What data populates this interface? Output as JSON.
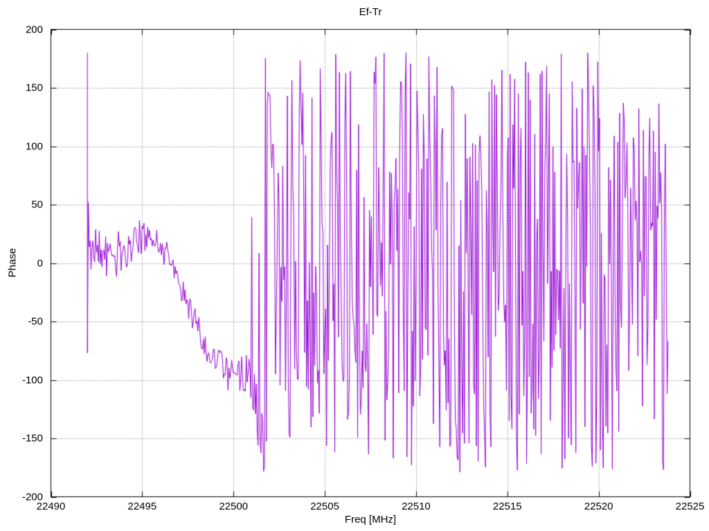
{
  "chart_data": {
    "type": "line",
    "title": "Ef-Tr",
    "xlabel": "Freq [MHz]",
    "ylabel": "Phase",
    "xlim": [
      22490,
      22525
    ],
    "ylim": [
      -200,
      200
    ],
    "x_ticks": [
      "22490",
      "22495",
      "22500",
      "22505",
      "22510",
      "22515",
      "22520",
      "22525"
    ],
    "x_tick_values": [
      22490,
      22495,
      22500,
      22505,
      22510,
      22515,
      22520,
      22525
    ],
    "y_ticks": [
      "-200",
      "-150",
      "-100",
      "-50",
      "0",
      "50",
      "100",
      "150",
      "200"
    ],
    "y_tick_values": [
      -200,
      -150,
      -100,
      -50,
      0,
      50,
      100,
      150,
      200
    ],
    "grid": true,
    "legend": "none",
    "colors": {
      "line": "#9400d3",
      "grid": "#9e9e9e",
      "axis": "#000000",
      "background": "#ffffff"
    },
    "series": [
      {
        "name": "Ef-Tr",
        "color": "#9400d3",
        "x_start": 22492.15,
        "x_end": 22523.8,
        "x_step": 0.05,
        "seed": 20507,
        "prefix_points": [
          [
            22492.0,
            180
          ],
          [
            22492.0,
            -77
          ],
          [
            22492.05,
            52
          ],
          [
            22492.1,
            14
          ]
        ],
        "mean_points": [
          [
            22492.1,
            8
          ],
          [
            22493.0,
            10
          ],
          [
            22493.8,
            8
          ],
          [
            22494.6,
            18
          ],
          [
            22495.2,
            25
          ],
          [
            22495.8,
            18
          ],
          [
            22496.4,
            8
          ],
          [
            22497.2,
            -25
          ],
          [
            22498.0,
            -55
          ],
          [
            22498.8,
            -80
          ],
          [
            22499.4,
            -90
          ],
          [
            22500.2,
            -92
          ],
          [
            22500.9,
            -100
          ],
          [
            22501.6,
            -150
          ],
          [
            22502.4,
            -300
          ],
          [
            22503.2,
            -600
          ],
          [
            22504.5,
            -1400
          ],
          [
            22506.0,
            -2700
          ],
          [
            22508.0,
            -4700
          ],
          [
            22510.0,
            -6900
          ],
          [
            22513.0,
            -10400
          ],
          [
            22516.0,
            -14000
          ],
          [
            22519.0,
            -17700
          ],
          [
            22521.5,
            -20900
          ],
          [
            22523.8,
            -23900
          ]
        ],
        "noise_points": [
          [
            22492.1,
            16
          ],
          [
            22494.0,
            14
          ],
          [
            22495.5,
            10
          ],
          [
            22497.0,
            10
          ],
          [
            22498.5,
            10
          ],
          [
            22499.5,
            13
          ],
          [
            22500.5,
            14
          ],
          [
            22501.3,
            20
          ],
          [
            22502.0,
            40
          ],
          [
            22502.8,
            70
          ],
          [
            22503.5,
            95
          ],
          [
            22505.0,
            105
          ],
          [
            22523.8,
            105
          ]
        ],
        "spike_prob_points": [
          [
            22492.1,
            0.0
          ],
          [
            22500.4,
            0.0
          ],
          [
            22501.0,
            0.06
          ],
          [
            22502.0,
            0.1
          ],
          [
            22503.0,
            0.2
          ],
          [
            22504.0,
            0.3
          ],
          [
            22523.8,
            0.3
          ]
        ],
        "wrap_degrees": 360
      }
    ]
  }
}
